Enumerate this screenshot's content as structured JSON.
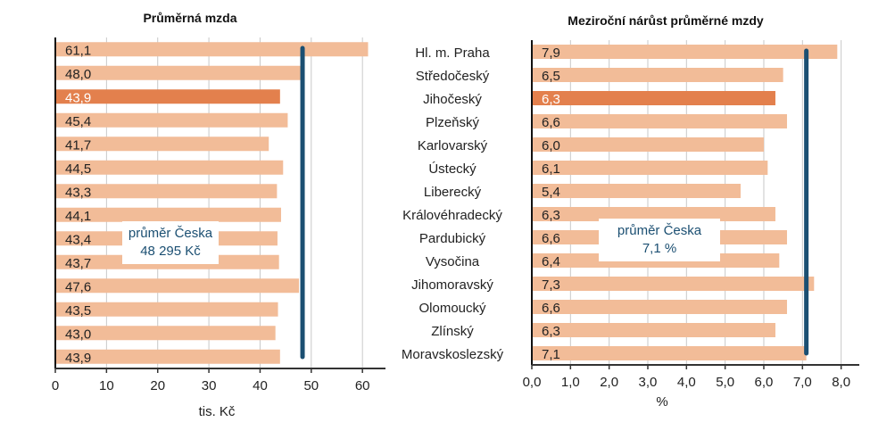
{
  "colors": {
    "bar": "#F2BC98",
    "highlight": "#E3804D",
    "average_line": "#1B4F72",
    "grid": "#C8C8C8"
  },
  "chart_data": [
    {
      "type": "bar",
      "orientation": "horizontal",
      "title": "Průměrná mzda",
      "xlabel": "tis. Kč",
      "xlim": [
        0,
        64.5
      ],
      "ticks": [
        "0",
        "10",
        "20",
        "30",
        "40",
        "50",
        "60"
      ],
      "tick_values": [
        0,
        10,
        20,
        30,
        40,
        50,
        60
      ],
      "values": [
        61.1,
        48.0,
        43.9,
        45.4,
        41.7,
        44.5,
        43.3,
        44.1,
        43.4,
        43.7,
        47.6,
        43.5,
        43.0,
        43.9
      ],
      "labels": [
        "61,1",
        "48,0",
        "43,9",
        "45,4",
        "41,7",
        "44,5",
        "43,3",
        "44,1",
        "43,4",
        "43,7",
        "47,6",
        "43,5",
        "43,0",
        "43,9"
      ],
      "highlight_index": 2,
      "average": 48.295,
      "average_label": [
        "průměr Česka",
        "48 295 Kč"
      ],
      "grid": true
    },
    {
      "type": "bar",
      "orientation": "horizontal",
      "title": "Meziroční nárůst průměrné mzdy",
      "xlabel": "%",
      "xlim": [
        0,
        8.47
      ],
      "ticks": [
        "0,0",
        "1,0",
        "2,0",
        "3,0",
        "4,0",
        "5,0",
        "6,0",
        "7,0",
        "8,0"
      ],
      "tick_values": [
        0,
        1,
        2,
        3,
        4,
        5,
        6,
        7,
        8
      ],
      "categories": [
        "Hl. m. Praha",
        "Středočeský",
        "Jihočeský",
        "Plzeňský",
        "Karlovarský",
        "Ústecký",
        "Liberecký",
        "Královéhradecký",
        "Pardubický",
        "Vysočina",
        "Jihomoravský",
        "Olomoucký",
        "Zlínský",
        "Moravskoslezský"
      ],
      "values": [
        7.9,
        6.5,
        6.3,
        6.6,
        6.0,
        6.1,
        5.4,
        6.3,
        6.6,
        6.4,
        7.3,
        6.6,
        6.3,
        7.1
      ],
      "labels": [
        "7,9",
        "6,5",
        "6,3",
        "6,6",
        "6,0",
        "6,1",
        "5,4",
        "6,3",
        "6,6",
        "6,4",
        "7,3",
        "6,6",
        "6,3",
        "7,1"
      ],
      "highlight_index": 2,
      "average": 7.1,
      "average_label": [
        "průměr Česka",
        "7,1 %"
      ],
      "grid": true
    }
  ]
}
